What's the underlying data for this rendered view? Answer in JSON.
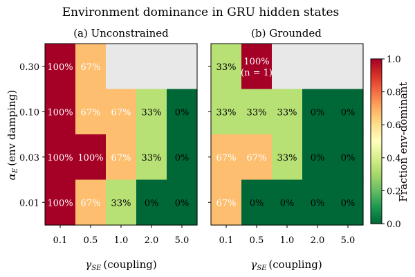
{
  "chart_data": {
    "type": "heatmap",
    "title": "Environment dominance in GRU hidden states",
    "xlabel_symbol": "γ",
    "xlabel_sub": "SE",
    "xlabel_text": "(coupling)",
    "ylabel_symbol": "α",
    "ylabel_sub": "E",
    "ylabel_text": "(env damping)",
    "x_ticks": [
      "0.1",
      "0.5",
      "1.0",
      "2.0",
      "5.0"
    ],
    "y_ticks": [
      "0.30",
      "0.10",
      "0.03",
      "0.01"
    ],
    "colorbar": {
      "label": "Fraction env-dominant",
      "colormap": "RdYlGn_r",
      "range": [
        0.0,
        1.0
      ],
      "ticks": [
        "0.0",
        "0.2",
        "0.4",
        "0.6",
        "0.8",
        "1.0"
      ]
    },
    "missing_color": "#e8e8e8",
    "panels": [
      {
        "title": "(a) Unconstrained",
        "values": [
          [
            1.0,
            0.667,
            null,
            null,
            null
          ],
          [
            1.0,
            0.667,
            0.667,
            0.333,
            0.0
          ],
          [
            1.0,
            1.0,
            0.667,
            0.333,
            0.0
          ],
          [
            1.0,
            0.667,
            0.333,
            0.0,
            0.0
          ]
        ],
        "labels": [
          [
            "100%",
            "67%",
            "",
            "",
            ""
          ],
          [
            "100%",
            "67%",
            "67%",
            "33%",
            "0%"
          ],
          [
            "100%",
            "100%",
            "67%",
            "33%",
            "0%"
          ],
          [
            "100%",
            "67%",
            "33%",
            "0%",
            "0%"
          ]
        ]
      },
      {
        "title": "(b) Grounded",
        "values": [
          [
            0.333,
            1.0,
            null,
            null,
            null
          ],
          [
            0.333,
            0.333,
            0.333,
            0.0,
            0.0
          ],
          [
            0.667,
            0.667,
            0.333,
            0.0,
            0.0
          ],
          [
            0.667,
            0.0,
            0.0,
            0.0,
            0.0
          ]
        ],
        "labels": [
          [
            "33%",
            "100%|(n = 1)",
            "",
            "",
            ""
          ],
          [
            "33%",
            "33%",
            "33%",
            "0%",
            "0%"
          ],
          [
            "67%",
            "67%",
            "33%",
            "0%",
            "0%"
          ],
          [
            "67%",
            "0%",
            "0%",
            "0%",
            "0%"
          ]
        ]
      }
    ]
  }
}
